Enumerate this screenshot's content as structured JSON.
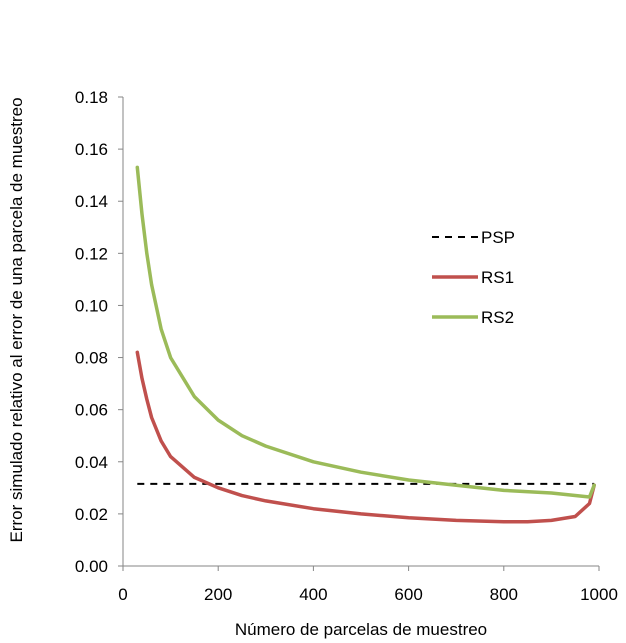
{
  "chart_data": {
    "type": "line",
    "title": "",
    "xlabel": "Número de parcelas de muestreo",
    "ylabel": "Error simulado relativo al error de una parcela de muestreo",
    "xlim": [
      0,
      1000
    ],
    "ylim": [
      0,
      0.18
    ],
    "xticks": [
      0,
      200,
      400,
      600,
      800,
      1000
    ],
    "yticks": [
      "0.00",
      "0.02",
      "0.04",
      "0.06",
      "0.08",
      "0.10",
      "0.12",
      "0.14",
      "0.16",
      "0.18"
    ],
    "grid": false,
    "legend_position": "right",
    "series": [
      {
        "name": "PSP",
        "style": "dashed",
        "color": "#000000",
        "x": [
          30,
          990
        ],
        "y": [
          0.0315,
          0.0315
        ]
      },
      {
        "name": "RS1",
        "style": "solid",
        "color": "#c0504d",
        "x": [
          30,
          40,
          50,
          60,
          80,
          100,
          150,
          200,
          250,
          300,
          400,
          500,
          600,
          700,
          800,
          850,
          900,
          950,
          980,
          990
        ],
        "y": [
          0.082,
          0.072,
          0.064,
          0.057,
          0.048,
          0.042,
          0.034,
          0.03,
          0.027,
          0.025,
          0.022,
          0.02,
          0.0185,
          0.0175,
          0.017,
          0.017,
          0.0175,
          0.019,
          0.024,
          0.031
        ]
      },
      {
        "name": "RS2",
        "style": "solid",
        "color": "#9bbb59",
        "x": [
          30,
          40,
          50,
          60,
          80,
          100,
          150,
          200,
          250,
          300,
          400,
          500,
          600,
          700,
          800,
          900,
          980,
          990
        ],
        "y": [
          0.153,
          0.135,
          0.12,
          0.108,
          0.091,
          0.08,
          0.065,
          0.056,
          0.05,
          0.046,
          0.04,
          0.036,
          0.033,
          0.031,
          0.029,
          0.028,
          0.0265,
          0.031
        ]
      }
    ]
  }
}
